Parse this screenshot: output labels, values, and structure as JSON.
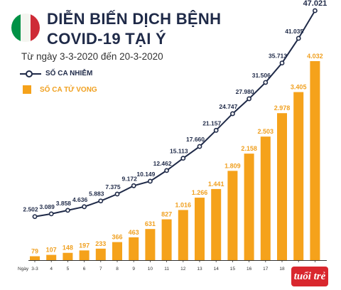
{
  "header": {
    "title_line1": "DIỄN BIẾN DỊCH BỆNH",
    "title_line2": "COVID-19 TẠI Ý",
    "subtitle": "Từ ngày 3-3-2020 đến 20-3-2020"
  },
  "logo": {
    "text": "tuổi trẻ"
  },
  "colors": {
    "line": "#1f2a48",
    "bars": "#f5a21b",
    "deaths_label": "#f0a020",
    "flag_green": "#009246",
    "flag_white": "#f4f5f0",
    "flag_red": "#ce2b37"
  },
  "chart_data": {
    "type": "bar",
    "xlabel_prefix": "Ngày",
    "categories": [
      "3-3",
      "4",
      "5",
      "6",
      "7",
      "8",
      "9",
      "10",
      "11",
      "12",
      "13",
      "14",
      "15",
      "16",
      "17",
      "18",
      "19",
      "20"
    ],
    "series": [
      {
        "name": "SỐ CA NHIỄM",
        "kind": "line",
        "values": [
          2502,
          3089,
          3858,
          4636,
          5883,
          7375,
          9172,
          10149,
          12462,
          15113,
          17660,
          21157,
          24747,
          27980,
          31506,
          35713,
          41035,
          47021
        ],
        "labels": [
          "2.502",
          "3.089",
          "3.858",
          "4.636",
          "5.883",
          "7.375",
          "9.172",
          "10.149",
          "12.462",
          "15.113",
          "17.660",
          "21.157",
          "24.747",
          "27.980",
          "31.506",
          "35.713",
          "41.035",
          "47.021"
        ]
      },
      {
        "name": "SỐ CA TỬ VONG",
        "kind": "bar",
        "values": [
          79,
          107,
          148,
          197,
          233,
          366,
          463,
          631,
          827,
          1016,
          1266,
          1441,
          1809,
          2158,
          2503,
          2978,
          3405,
          4032
        ],
        "labels": [
          "79",
          "107",
          "148",
          "197",
          "233",
          "366",
          "463",
          "631",
          "827",
          "1.016",
          "1.266",
          "1.441",
          "1.809",
          "2.158",
          "2.503",
          "2.978",
          "3.405",
          "4.032"
        ]
      }
    ],
    "grid": false,
    "legend_position": "top-left"
  }
}
